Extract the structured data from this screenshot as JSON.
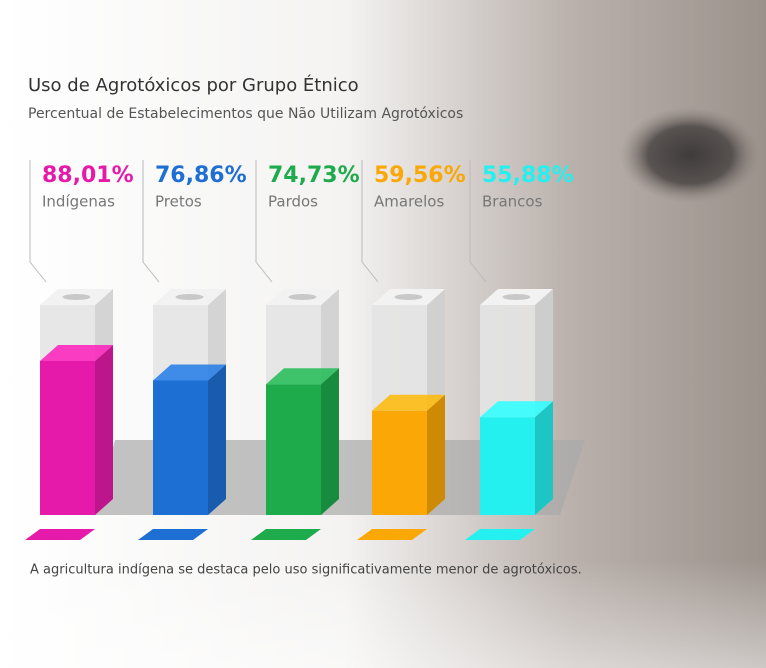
{
  "chart_data": {
    "type": "bar",
    "title": "Uso de Agrotóxicos por Grupo Étnico",
    "subtitle": "Percentual de Estabelecimentos que Não Utilizam Agrotóxicos",
    "annotation": "A agricultura indígena se destaca pelo uso significativamente menor de agrotóxicos.",
    "categories": [
      "Indígenas",
      "Pretos",
      "Pardos",
      "Amarelos",
      "Brancos"
    ],
    "values": [
      88.01,
      76.86,
      74.73,
      59.56,
      55.88
    ],
    "value_labels": [
      "88,01%",
      "76,86%",
      "74,73%",
      "59,56%",
      "55,88%"
    ],
    "colors": [
      "#e61aaa",
      "#1e6fd3",
      "#1dab4c",
      "#fba706",
      "#25f0f0"
    ]
  }
}
